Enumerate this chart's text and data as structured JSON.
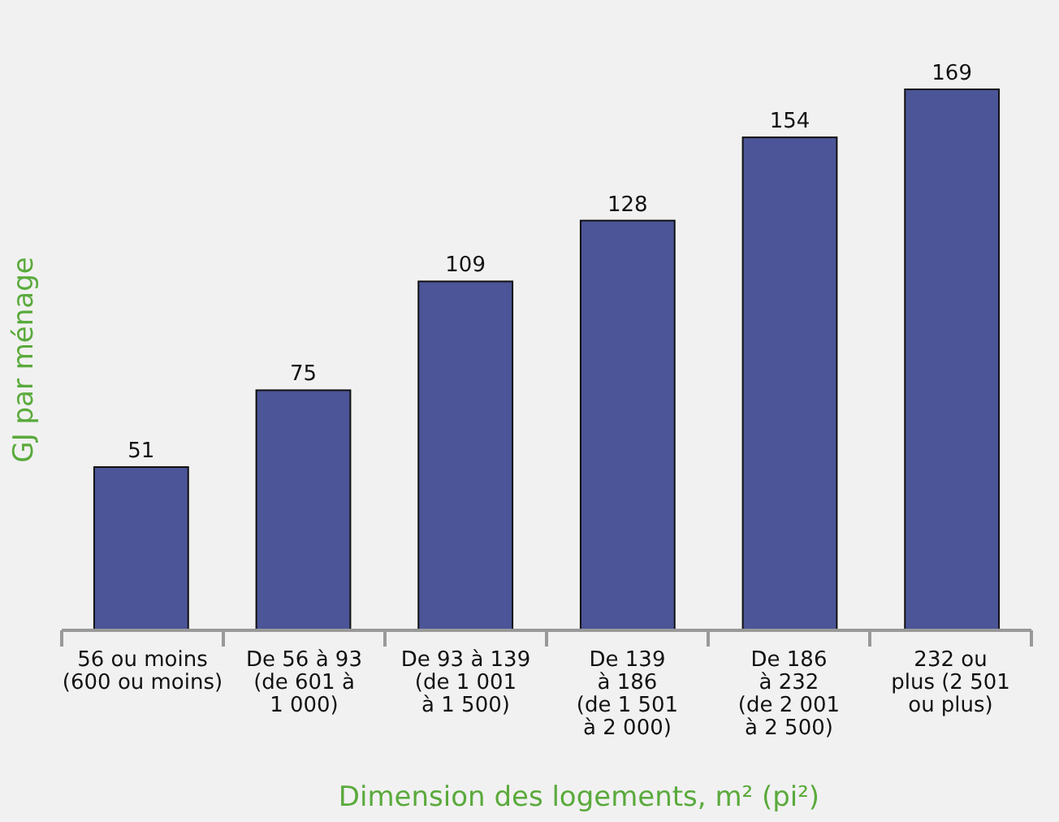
{
  "chart_data": {
    "type": "bar",
    "xlabel": "Dimension des logements, m² (pi²)",
    "ylabel": "GJ par ménage",
    "categories": [
      "56 ou moins\n(600 ou moins)",
      "De 56 à 93\n(de 601 à\n1 000)",
      "De 93 à 139\n(de 1 001\nà 1 500)",
      "De 139\nà 186\n(de 1 501\nà 2 000)",
      "De 186\nà 232\n(de 2 001\nà 2 500)",
      "232 ou\nplus (2 501\nou plus)"
    ],
    "values": [
      51,
      75,
      109,
      128,
      154,
      169
    ],
    "color": "#4b5597",
    "data_labels": true
  }
}
